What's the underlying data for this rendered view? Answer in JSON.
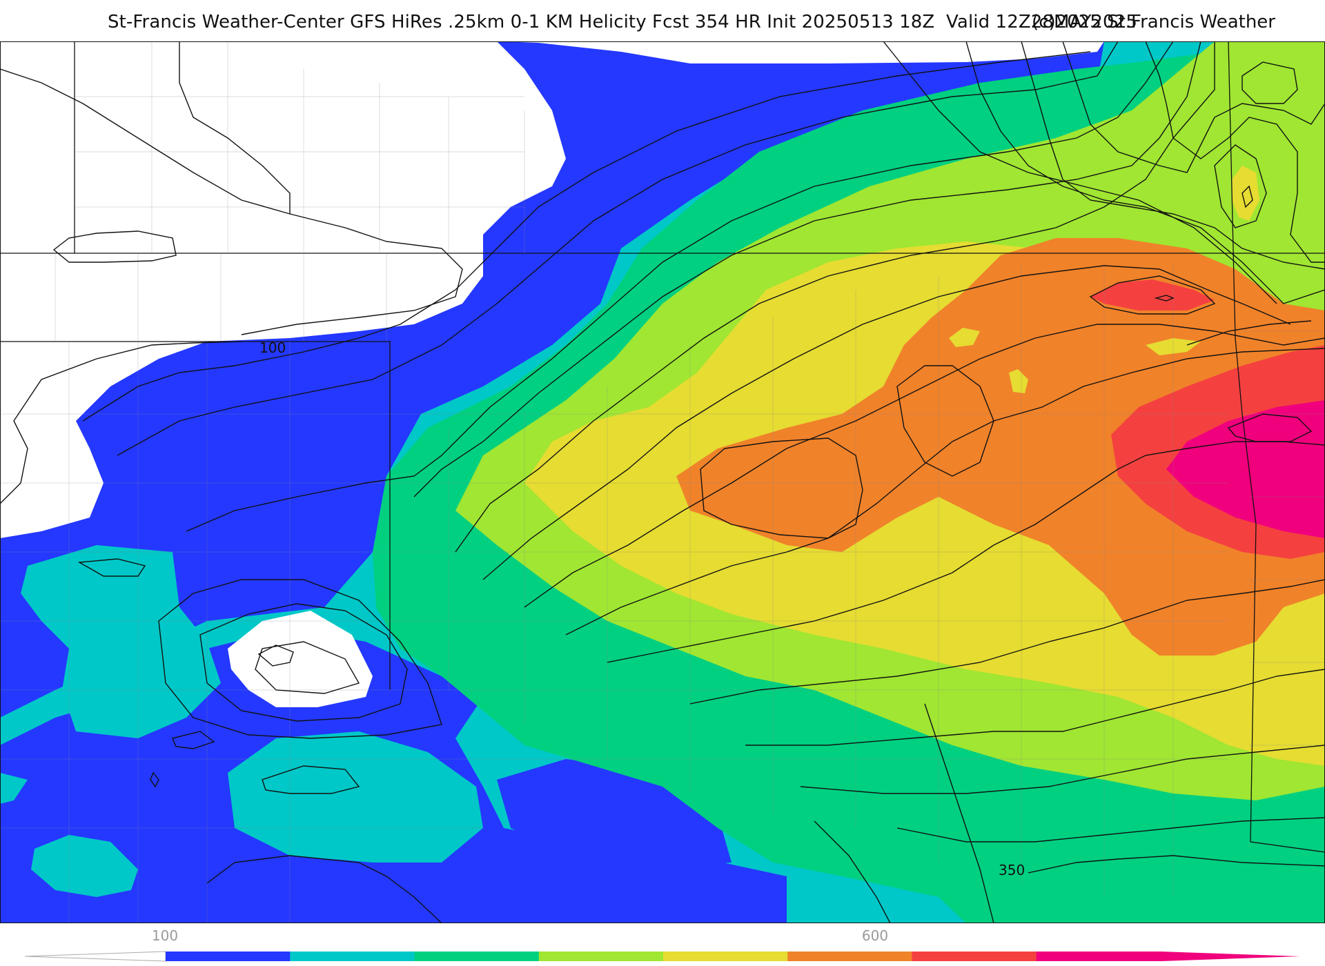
{
  "header": {
    "title": "St-Francis Weather-Center GFS HiRes .25km 0-1 KM Helicity Fcst 354 HR Init 20250513 18Z  Valid 12Z28MAY2025",
    "credit": "(c)2025 St.Francis Weather"
  },
  "map": {
    "contour_labels": [
      "100",
      "350"
    ],
    "fill_colors": {
      "below_100": "#ffffff",
      "band_100": "#2438ff",
      "band_160": "#00c8c8",
      "band_220": "#00d080",
      "band_280": "#a0e632",
      "band_350": "#e6dc32",
      "band_420": "#f0822a",
      "band_500": "#f54040",
      "band_600": "#f0007c"
    }
  },
  "colorbar": {
    "tick_labels": [
      "100",
      "600"
    ],
    "colors": [
      "#2438ff",
      "#00c8c8",
      "#00d080",
      "#a0e632",
      "#e6dc32",
      "#f0822a",
      "#f54040",
      "#f0007c"
    ]
  }
}
